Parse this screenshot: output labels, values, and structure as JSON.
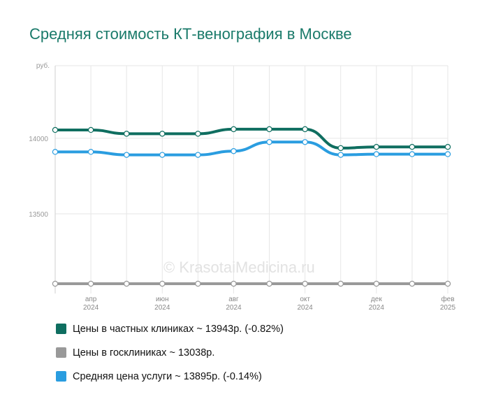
{
  "title": "Средняя стоимость КТ-венография в Москве",
  "watermark": "© KrasotaiMedicina.ru",
  "chart_data": {
    "type": "line",
    "y_unit": "руб.",
    "y_ticks": [
      14000,
      13500
    ],
    "ylim": [
      13038,
      14480
    ],
    "x_count": 12,
    "x_tick_labels": [
      {
        "index": 1,
        "month": "апр",
        "year": "2024"
      },
      {
        "index": 3,
        "month": "июн",
        "year": "2024"
      },
      {
        "index": 5,
        "month": "авг",
        "year": "2024"
      },
      {
        "index": 7,
        "month": "окт",
        "year": "2024"
      },
      {
        "index": 9,
        "month": "дек",
        "year": "2024"
      },
      {
        "index": 11,
        "month": "фев",
        "year": "2025"
      }
    ],
    "grid": true,
    "legend_position": "bottom",
    "series": [
      {
        "name": "Цены в частных клиниках ~ 13943р. (-0.82%)",
        "color": "#0f6e60",
        "values": [
          14055,
          14055,
          14030,
          14030,
          14030,
          14060,
          14060,
          14060,
          13935,
          13943,
          13943,
          13943
        ]
      },
      {
        "name": "Цены в госклиниках ~ 13038р.",
        "color": "#999999",
        "values": [
          13038,
          13038,
          13038,
          13038,
          13038,
          13038,
          13038,
          13038,
          13038,
          13038,
          13038,
          13038
        ]
      },
      {
        "name": "Средняя цена услуги ~ 13895р. (-0.14%)",
        "color": "#2a9de0",
        "values": [
          13910,
          13910,
          13890,
          13890,
          13890,
          13915,
          13975,
          13975,
          13890,
          13895,
          13895,
          13895
        ]
      }
    ]
  }
}
